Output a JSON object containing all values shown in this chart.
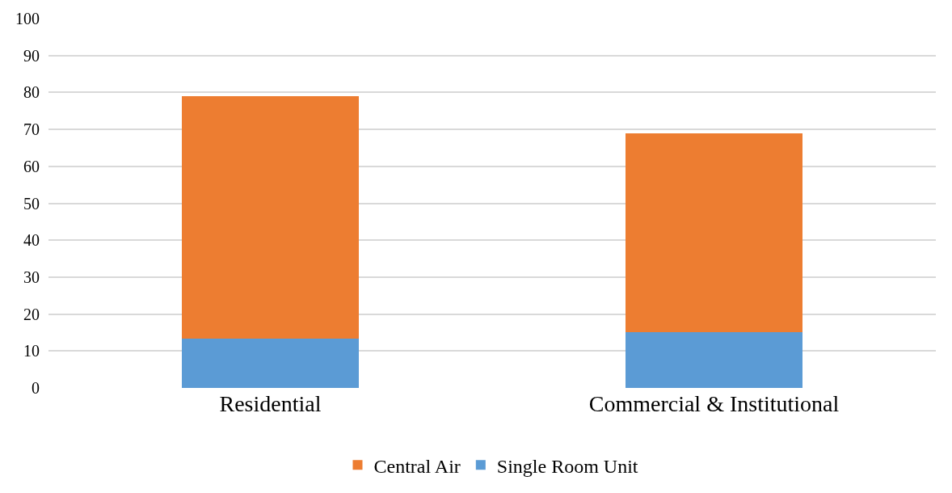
{
  "chart_data": {
    "type": "bar",
    "stacked": true,
    "categories": [
      "Residential",
      "Commercial & Institutional"
    ],
    "series": [
      {
        "name": "Single Room Unit",
        "color": "#5b9bd5",
        "values": [
          13.3,
          15.2
        ]
      },
      {
        "name": "Central Air",
        "color": "#ed7d31",
        "values": [
          65.7,
          53.8
        ]
      }
    ],
    "ylim": [
      0,
      100
    ],
    "yticks": [
      0,
      10,
      20,
      30,
      40,
      50,
      60,
      70,
      80,
      90,
      100
    ],
    "grid": "y",
    "legend": "bottom"
  }
}
